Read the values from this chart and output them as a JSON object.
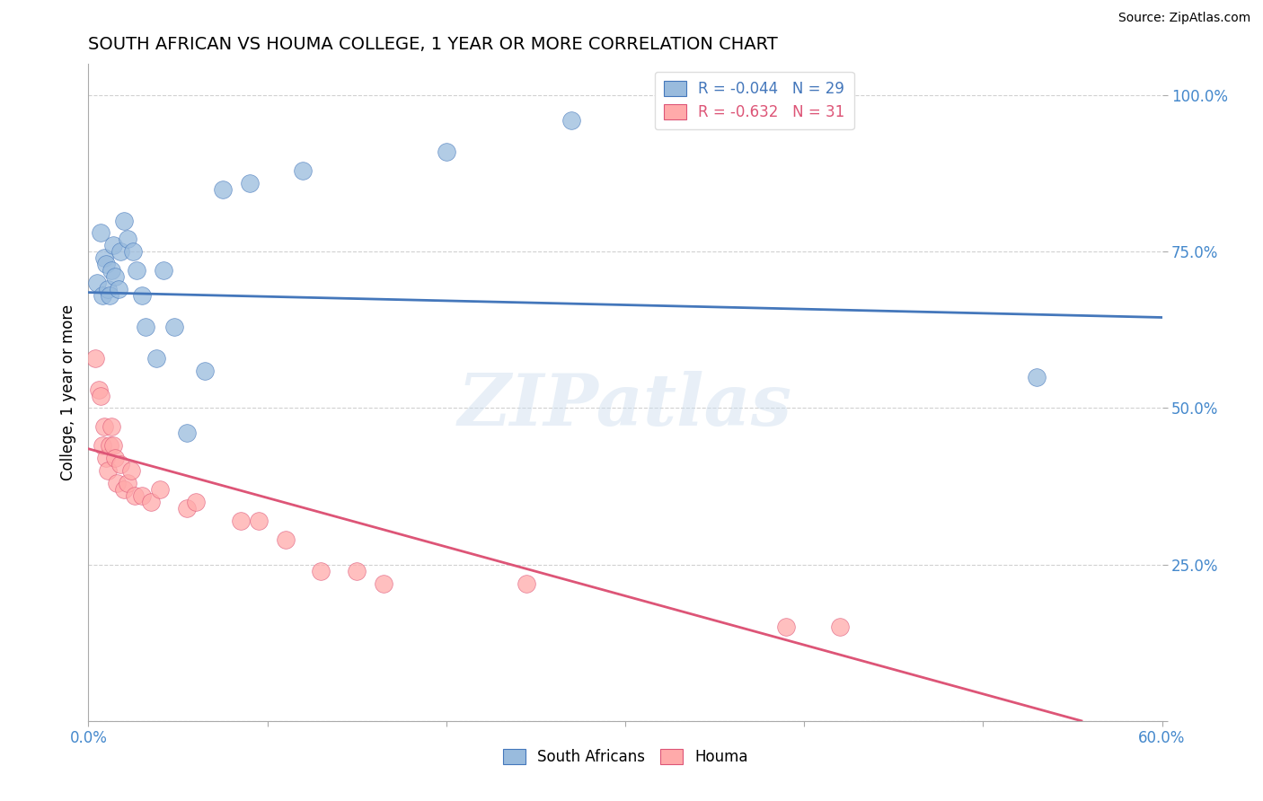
{
  "title": "SOUTH AFRICAN VS HOUMA COLLEGE, 1 YEAR OR MORE CORRELATION CHART",
  "source_text": "Source: ZipAtlas.com",
  "ylabel": "College, 1 year or more",
  "xlim": [
    0.0,
    0.6
  ],
  "ylim": [
    0.0,
    1.05
  ],
  "blue_scatter_x": [
    0.005,
    0.007,
    0.008,
    0.009,
    0.01,
    0.011,
    0.012,
    0.013,
    0.014,
    0.015,
    0.017,
    0.018,
    0.02,
    0.022,
    0.025,
    0.027,
    0.03,
    0.032,
    0.038,
    0.042,
    0.048,
    0.055,
    0.065,
    0.075,
    0.09,
    0.12,
    0.2,
    0.27,
    0.53
  ],
  "blue_scatter_y": [
    0.7,
    0.78,
    0.68,
    0.74,
    0.73,
    0.69,
    0.68,
    0.72,
    0.76,
    0.71,
    0.69,
    0.75,
    0.8,
    0.77,
    0.75,
    0.72,
    0.68,
    0.63,
    0.58,
    0.72,
    0.63,
    0.46,
    0.56,
    0.85,
    0.86,
    0.88,
    0.91,
    0.96,
    0.55
  ],
  "pink_scatter_x": [
    0.004,
    0.006,
    0.007,
    0.008,
    0.009,
    0.01,
    0.011,
    0.012,
    0.013,
    0.014,
    0.015,
    0.016,
    0.018,
    0.02,
    0.022,
    0.024,
    0.026,
    0.03,
    0.035,
    0.04,
    0.055,
    0.06,
    0.085,
    0.095,
    0.11,
    0.13,
    0.15,
    0.165,
    0.245,
    0.39,
    0.42
  ],
  "pink_scatter_y": [
    0.58,
    0.53,
    0.52,
    0.44,
    0.47,
    0.42,
    0.4,
    0.44,
    0.47,
    0.44,
    0.42,
    0.38,
    0.41,
    0.37,
    0.38,
    0.4,
    0.36,
    0.36,
    0.35,
    0.37,
    0.34,
    0.35,
    0.32,
    0.32,
    0.29,
    0.24,
    0.24,
    0.22,
    0.22,
    0.15,
    0.15
  ],
  "blue_R": -0.044,
  "blue_N": 29,
  "pink_R": -0.632,
  "pink_N": 31,
  "blue_line_x": [
    0.0,
    0.6
  ],
  "blue_line_y": [
    0.685,
    0.645
  ],
  "pink_line_x": [
    0.0,
    0.555
  ],
  "pink_line_y": [
    0.435,
    0.0
  ],
  "blue_color": "#99BBDD",
  "pink_color": "#FFAAAA",
  "blue_line_color": "#4477BB",
  "pink_line_color": "#DD5577",
  "background_color": "#FFFFFF",
  "grid_color": "#CCCCCC",
  "title_fontsize": 14,
  "axis_label_fontsize": 12,
  "tick_label_color": "#4488CC",
  "watermark_text": "ZIPatlas",
  "legend_blue_text": "R = -0.044   N = 29",
  "legend_pink_text": "R = -0.632   N = 31",
  "bottom_legend_labels": [
    "South Africans",
    "Houma"
  ]
}
